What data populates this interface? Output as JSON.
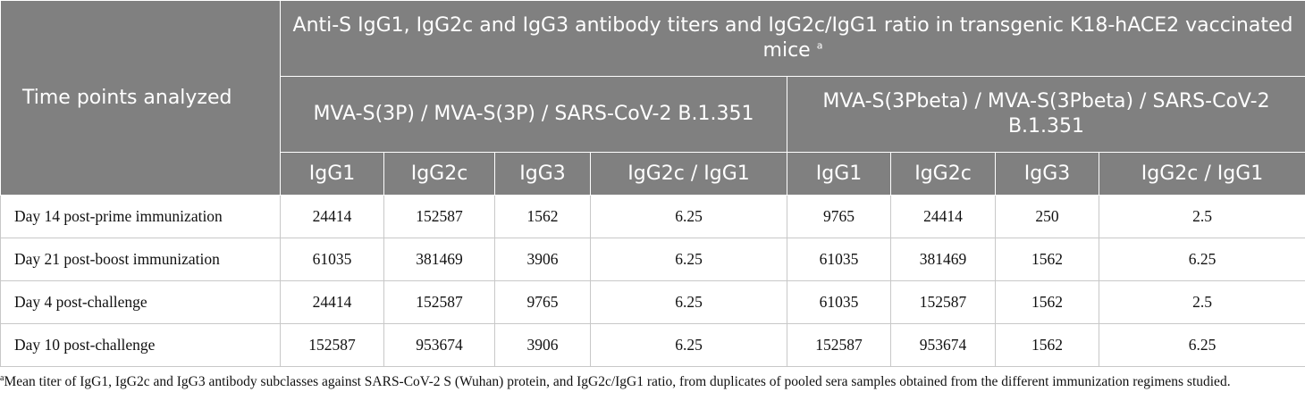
{
  "table": {
    "row_header": "Time points analyzed",
    "title": "Anti-S IgG1, IgG2c and IgG3 antibody titers and IgG2c/IgG1 ratio in transgenic K18-hACE2 vaccinated mice",
    "title_mark": "a",
    "groups": [
      "MVA-S(3P) / MVA-S(3P) / SARS-CoV-2 B.1.351",
      "MVA-S(3Pbeta) / MVA-S(3Pbeta) / SARS-CoV-2 B.1.351"
    ],
    "subheaders": [
      "IgG1",
      "IgG2c",
      "IgG3",
      "IgG2c / IgG1",
      "IgG1",
      "IgG2c",
      "IgG3",
      "IgG2c / IgG1"
    ],
    "rows": [
      {
        "label": "Day 14 post-prime immunization",
        "values": [
          "24414",
          "152587",
          "1562",
          "6.25",
          "9765",
          "24414",
          "250",
          "2.5"
        ]
      },
      {
        "label": "Day 21 post-boost immunization",
        "values": [
          "61035",
          "381469",
          "3906",
          "6.25",
          "61035",
          "381469",
          "1562",
          "6.25"
        ]
      },
      {
        "label": "Day 4 post-challenge",
        "values": [
          "24414",
          "152587",
          "9765",
          "6.25",
          "61035",
          "152587",
          "1562",
          "2.5"
        ]
      },
      {
        "label": "Day 10 post-challenge",
        "values": [
          "152587",
          "953674",
          "3906",
          "6.25",
          "152587",
          "953674",
          "1562",
          "6.25"
        ]
      }
    ]
  },
  "footnote": {
    "mark": "a",
    "text": "Mean titer of IgG1, IgG2c and IgG3 antibody subclasses against SARS-CoV-2 S (Wuhan) protein, and IgG2c/IgG1 ratio, from duplicates of pooled sera samples obtained from the different immunization regimens studied."
  },
  "colors": {
    "header_bg": "#808080",
    "header_text": "#ffffff",
    "body_text": "#111111",
    "border": "#c8c8c8"
  }
}
